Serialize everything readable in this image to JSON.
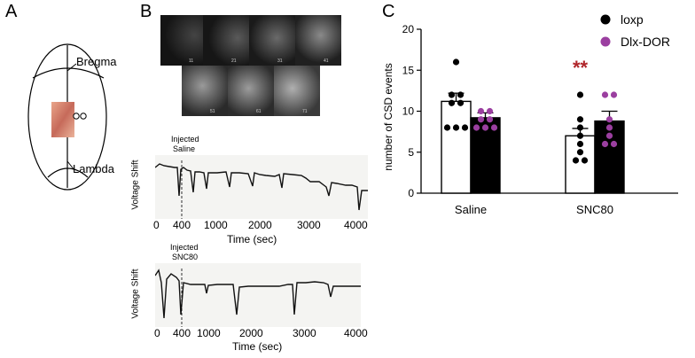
{
  "panels": {
    "a": "A",
    "b": "B",
    "c": "C"
  },
  "panel_a": {
    "bregma": "Bregma",
    "lambda": "Lambda"
  },
  "panel_b": {
    "frames": [
      "11",
      "21",
      "31",
      "41",
      "51",
      "61",
      "71"
    ],
    "trace1": {
      "ylabel": "Voltage Shift",
      "annotation_line1": "Injected",
      "annotation_line2": "Saline",
      "xlabel": "Time (sec)",
      "xticks": [
        "0",
        "400",
        "1000",
        "2000",
        "3000",
        "4000"
      ]
    },
    "trace2": {
      "ylabel": "Voltage Shift",
      "annotation_line1": "Injected",
      "annotation_line2": "SNC80",
      "xlabel": "Time (sec)",
      "xticks": [
        "0",
        "400",
        "1000",
        "2000",
        "3000",
        "4000"
      ]
    }
  },
  "chart_data": {
    "type": "bar",
    "ylabel": "number of CSD events",
    "ylim": [
      0,
      20
    ],
    "yticks": [
      "0",
      "5",
      "10",
      "15",
      "20"
    ],
    "categories": [
      "Saline",
      "SNC80"
    ],
    "series": [
      {
        "name": "loxp",
        "color": "#000000",
        "bar_fill": "#ffffff",
        "values": [
          11.2,
          7.0
        ],
        "sem": [
          1.0,
          0.9
        ],
        "points": [
          [
            16,
            12,
            12,
            11,
            11,
            8,
            8,
            8
          ],
          [
            12,
            9,
            8,
            7,
            6,
            5,
            4,
            4
          ]
        ]
      },
      {
        "name": "Dlx-DOR",
        "color": "#9b3fa0",
        "bar_fill": "#000000",
        "values": [
          9.2,
          8.8
        ],
        "sem": [
          0.6,
          1.2
        ],
        "points": [
          [
            10,
            10,
            9,
            9,
            8,
            8,
            8
          ],
          [
            12,
            12,
            9,
            8,
            7,
            6,
            6
          ]
        ]
      }
    ],
    "significance": {
      "label": "**",
      "category": "SNC80",
      "series": "loxp",
      "color": "#b0262b"
    },
    "legend_position": "top-right"
  }
}
